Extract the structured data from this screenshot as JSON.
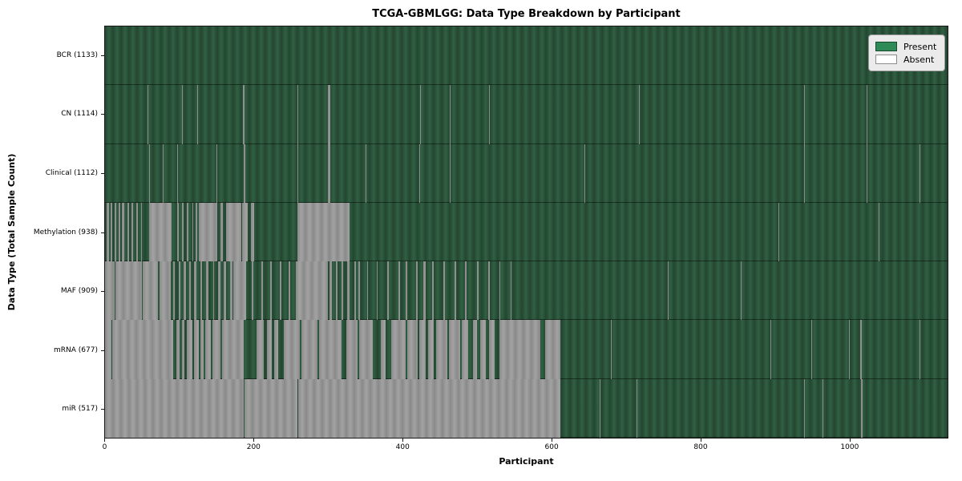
{
  "chart_data": {
    "type": "heatmap",
    "title": "TCGA-GBMLGG: Data Type Breakdown by Participant",
    "xlabel": "Participant",
    "ylabel": "Data Type (Total Sample Count)",
    "x_ticks": [
      0,
      200,
      400,
      600,
      800,
      1000
    ],
    "x_max": 1133,
    "grid": false,
    "legend": {
      "present": "Present",
      "absent": "Absent",
      "position": "upper right"
    },
    "colors": {
      "present": "#2e8b57",
      "absent": "#ffffff",
      "edge": "#000000"
    },
    "rows": [
      {
        "name": "BCR",
        "label": "BCR (1133)",
        "count": 1133,
        "absent_ranges": []
      },
      {
        "name": "CN",
        "label": "CN (1114)",
        "count": 1114,
        "absent_ranges": [
          [
            57,
            58
          ],
          [
            75,
            76
          ],
          [
            104,
            105
          ],
          [
            124,
            125
          ],
          [
            185,
            188
          ],
          [
            259,
            260
          ],
          [
            300,
            303
          ],
          [
            424,
            425
          ],
          [
            464,
            465
          ],
          [
            516,
            517
          ],
          [
            718,
            719
          ],
          [
            940,
            941
          ],
          [
            1024,
            1025
          ]
        ]
      },
      {
        "name": "Clinical",
        "label": "Clinical (1112)",
        "count": 1112,
        "absent_ranges": [
          [
            59,
            60
          ],
          [
            78,
            79
          ],
          [
            97,
            98
          ],
          [
            150,
            151
          ],
          [
            186,
            189
          ],
          [
            259,
            260
          ],
          [
            300,
            303
          ],
          [
            350,
            351
          ],
          [
            423,
            424
          ],
          [
            464,
            465
          ],
          [
            518,
            519
          ],
          [
            645,
            646
          ],
          [
            940,
            941
          ],
          [
            1024,
            1025
          ],
          [
            1095,
            1096
          ]
        ]
      },
      {
        "name": "Methylation",
        "label": "Methylation (938)",
        "count": 938,
        "absent_ranges": [
          [
            2,
            5
          ],
          [
            8,
            10
          ],
          [
            13,
            15
          ],
          [
            18,
            20
          ],
          [
            23,
            26
          ],
          [
            30,
            32
          ],
          [
            36,
            38
          ],
          [
            42,
            44
          ],
          [
            48,
            50
          ],
          [
            59,
            90
          ],
          [
            97,
            99
          ],
          [
            103,
            106
          ],
          [
            110,
            112
          ],
          [
            117,
            119
          ],
          [
            122,
            124
          ],
          [
            126,
            151
          ],
          [
            155,
            158
          ],
          [
            163,
            183
          ],
          [
            184,
            192
          ],
          [
            196,
            200
          ],
          [
            259,
            329
          ],
          [
            906,
            907
          ],
          [
            1040,
            1041
          ]
        ]
      },
      {
        "name": "MAF",
        "label": "MAF (909)",
        "count": 909,
        "absent_ranges": [
          [
            0,
            13
          ],
          [
            14,
            50
          ],
          [
            51,
            71
          ],
          [
            73,
            88
          ],
          [
            92,
            94
          ],
          [
            99,
            101
          ],
          [
            106,
            109
          ],
          [
            113,
            115
          ],
          [
            120,
            123
          ],
          [
            128,
            130
          ],
          [
            136,
            139
          ],
          [
            145,
            147
          ],
          [
            152,
            155
          ],
          [
            160,
            163
          ],
          [
            168,
            171
          ],
          [
            172,
            190
          ],
          [
            197,
            199
          ],
          [
            210,
            212
          ],
          [
            222,
            224
          ],
          [
            235,
            237
          ],
          [
            247,
            249
          ],
          [
            257,
            300
          ],
          [
            302,
            305
          ],
          [
            310,
            313
          ],
          [
            318,
            320
          ],
          [
            326,
            329
          ],
          [
            335,
            337
          ],
          [
            341,
            343
          ],
          [
            352,
            354
          ],
          [
            365,
            367
          ],
          [
            380,
            382
          ],
          [
            395,
            397
          ],
          [
            404,
            406
          ],
          [
            418,
            420
          ],
          [
            428,
            431
          ],
          [
            440,
            442
          ],
          [
            455,
            457
          ],
          [
            470,
            472
          ],
          [
            484,
            486
          ],
          [
            500,
            502
          ],
          [
            515,
            517
          ],
          [
            530,
            532
          ],
          [
            545,
            547
          ],
          [
            757,
            758
          ],
          [
            855,
            856
          ],
          [
            1043,
            1044
          ]
        ]
      },
      {
        "name": "mRNA",
        "label": "mRNA (677)",
        "count": 677,
        "absent_ranges": [
          [
            0,
            9
          ],
          [
            10,
            92
          ],
          [
            96,
            100
          ],
          [
            103,
            107
          ],
          [
            110,
            118
          ],
          [
            120,
            126
          ],
          [
            128,
            133
          ],
          [
            135,
            142
          ],
          [
            144,
            155
          ],
          [
            157,
            186
          ],
          [
            204,
            213
          ],
          [
            218,
            224
          ],
          [
            228,
            233
          ],
          [
            240,
            262
          ],
          [
            264,
            286
          ],
          [
            288,
            318
          ],
          [
            325,
            340
          ],
          [
            342,
            360
          ],
          [
            371,
            377
          ],
          [
            385,
            404
          ],
          [
            406,
            420
          ],
          [
            423,
            431
          ],
          [
            434,
            442
          ],
          [
            445,
            460
          ],
          [
            462,
            478
          ],
          [
            480,
            488
          ],
          [
            495,
            500
          ],
          [
            505,
            512
          ],
          [
            516,
            524
          ],
          [
            530,
            585
          ],
          [
            592,
            612
          ],
          [
            680,
            681
          ],
          [
            895,
            896
          ],
          [
            950,
            951
          ],
          [
            1000,
            1001
          ],
          [
            1015,
            1018
          ],
          [
            1095,
            1096
          ]
        ]
      },
      {
        "name": "miR",
        "label": "miR (517)",
        "count": 517,
        "absent_ranges": [
          [
            0,
            187
          ],
          [
            188,
            259
          ],
          [
            260,
            612
          ],
          [
            665,
            666
          ],
          [
            715,
            716
          ],
          [
            940,
            941
          ],
          [
            965,
            966
          ],
          [
            1001,
            1002
          ],
          [
            1017,
            1019
          ]
        ]
      }
    ]
  }
}
